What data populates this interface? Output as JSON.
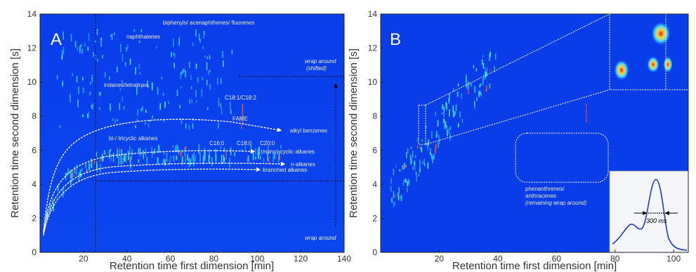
{
  "chart_data": [
    {
      "type": "heatmap",
      "panel_label": "A",
      "xlabel": "Retention time first dimension [min]",
      "ylabel": "Retention time second dimension [s]",
      "xlim": [
        0,
        140
      ],
      "ylim": [
        0,
        14
      ],
      "x_ticks": [
        "20",
        "40",
        "60",
        "80",
        "100",
        "120",
        "140"
      ],
      "y_ticks": [
        "0",
        "2",
        "4",
        "6",
        "8",
        "10",
        "12",
        "14"
      ],
      "annotations": [
        "biphenyls/ acenaphthenes/ fluorenes",
        "naphthalenes",
        "indanes/tetralines",
        "C18:1/C18:2",
        "FAME",
        "alkyl benzenes",
        "bi-/ tricyclic alkanes",
        "C16:0",
        "C18:0",
        "C20:0",
        "(mono) cyclic alkanes",
        "n-alkanes",
        "branched alkanes",
        "wrap around",
        "(shifted)",
        "wrap around"
      ]
    },
    {
      "type": "heatmap",
      "panel_label": "B",
      "xlabel": "Retention time first dimension [min]",
      "ylabel": "Retention time second dimension [s]",
      "xlim": [
        0,
        105
      ],
      "ylim": [
        0,
        14
      ],
      "x_ticks": [
        "20",
        "40",
        "60",
        "80",
        "100"
      ],
      "y_ticks": [
        "0",
        "2",
        "4",
        "6",
        "8",
        "10",
        "12",
        "14"
      ],
      "annotations": [
        "phenanthrenes/",
        "anthracenes",
        "(remaining wrap around)",
        "300 ms"
      ]
    }
  ],
  "colors": {
    "background": "#0a3dea",
    "curve": "#ffffff",
    "hot": "#d52a1e"
  }
}
